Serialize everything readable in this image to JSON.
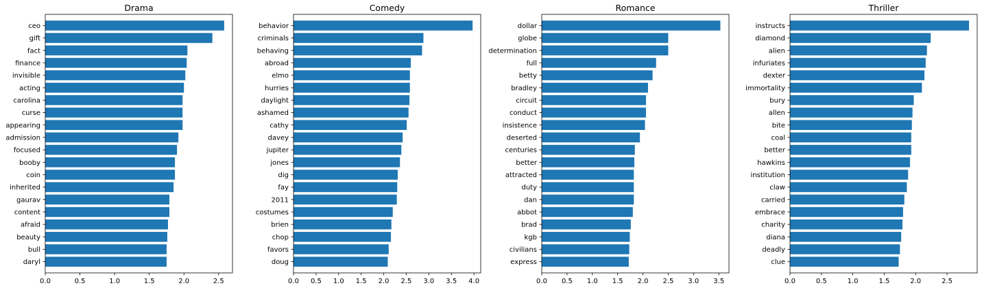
{
  "chart_data": [
    {
      "type": "bar",
      "orientation": "horizontal",
      "title": "Drama",
      "color": "#1f77b4",
      "xlim": [
        0,
        2.7
      ],
      "xticks": [
        "0.0",
        "0.5",
        "1.0",
        "1.5",
        "2.0",
        "2.5"
      ],
      "xtick_values": [
        0,
        0.5,
        1.0,
        1.5,
        2.0,
        2.5
      ],
      "categories": [
        "ceo",
        "gift",
        "fact",
        "finance",
        "invisible",
        "acting",
        "carolina",
        "curse",
        "appearing",
        "admission",
        "focused",
        "booby",
        "coin",
        "inherited",
        "gaurav",
        "content",
        "afraid",
        "beauty",
        "bull",
        "daryl"
      ],
      "values": [
        2.58,
        2.41,
        2.05,
        2.04,
        2.02,
        2.0,
        1.98,
        1.98,
        1.98,
        1.92,
        1.9,
        1.87,
        1.87,
        1.85,
        1.79,
        1.79,
        1.77,
        1.76,
        1.75,
        1.75
      ]
    },
    {
      "type": "bar",
      "orientation": "horizontal",
      "title": "Comedy",
      "color": "#1f77b4",
      "xlim": [
        0,
        4.15
      ],
      "xticks": [
        "0.0",
        "0.5",
        "1.0",
        "1.5",
        "2.0",
        "2.5",
        "3.0",
        "3.5",
        "4.0"
      ],
      "xtick_values": [
        0,
        0.5,
        1.0,
        1.5,
        2.0,
        2.5,
        3.0,
        3.5,
        4.0
      ],
      "categories": [
        "behavior",
        "criminals",
        "behaving",
        "abroad",
        "elmo",
        "hurries",
        "daylight",
        "ashamed",
        "cathy",
        "davey",
        "jupiter",
        "jones",
        "dig",
        "fay",
        "2011",
        "costumes",
        "brien",
        "chop",
        "favors",
        "doug"
      ],
      "values": [
        3.97,
        2.88,
        2.85,
        2.6,
        2.58,
        2.58,
        2.57,
        2.55,
        2.51,
        2.42,
        2.39,
        2.36,
        2.31,
        2.3,
        2.29,
        2.2,
        2.17,
        2.16,
        2.11,
        2.09
      ]
    },
    {
      "type": "bar",
      "orientation": "horizontal",
      "title": "Romance",
      "color": "#1f77b4",
      "xlim": [
        0,
        3.7
      ],
      "xticks": [
        "0.0",
        "0.5",
        "1.0",
        "1.5",
        "2.0",
        "2.5",
        "3.0",
        "3.5"
      ],
      "xtick_values": [
        0,
        0.5,
        1.0,
        1.5,
        2.0,
        2.5,
        3.0,
        3.5
      ],
      "categories": [
        "dollar",
        "globe",
        "determination",
        "full",
        "betty",
        "bradley",
        "circuit",
        "conduct",
        "insistence",
        "deserted",
        "centuries",
        "better",
        "attracted",
        "duty",
        "dan",
        "abbot",
        "brad",
        "kgb",
        "civilians",
        "express"
      ],
      "values": [
        3.53,
        2.5,
        2.5,
        2.26,
        2.19,
        2.1,
        2.06,
        2.06,
        2.04,
        1.94,
        1.84,
        1.83,
        1.82,
        1.82,
        1.82,
        1.8,
        1.76,
        1.74,
        1.73,
        1.72
      ]
    },
    {
      "type": "bar",
      "orientation": "horizontal",
      "title": "Thriller",
      "color": "#1f77b4",
      "xlim": [
        0,
        2.98
      ],
      "xticks": [
        "0.0",
        "0.5",
        "1.0",
        "1.5",
        "2.0",
        "2.5"
      ],
      "xtick_values": [
        0,
        0.5,
        1.0,
        1.5,
        2.0,
        2.5
      ],
      "categories": [
        "instructs",
        "diamond",
        "alien",
        "infuriates",
        "dexter",
        "immortality",
        "bury",
        "allen",
        "bite",
        "coal",
        "better",
        "hawkins",
        "institution",
        "claw",
        "carried",
        "embrace",
        "charity",
        "diana",
        "deadly",
        "clue"
      ],
      "values": [
        2.85,
        2.24,
        2.18,
        2.16,
        2.14,
        2.1,
        1.97,
        1.95,
        1.94,
        1.93,
        1.93,
        1.91,
        1.88,
        1.86,
        1.82,
        1.8,
        1.79,
        1.77,
        1.75,
        1.73
      ]
    }
  ]
}
